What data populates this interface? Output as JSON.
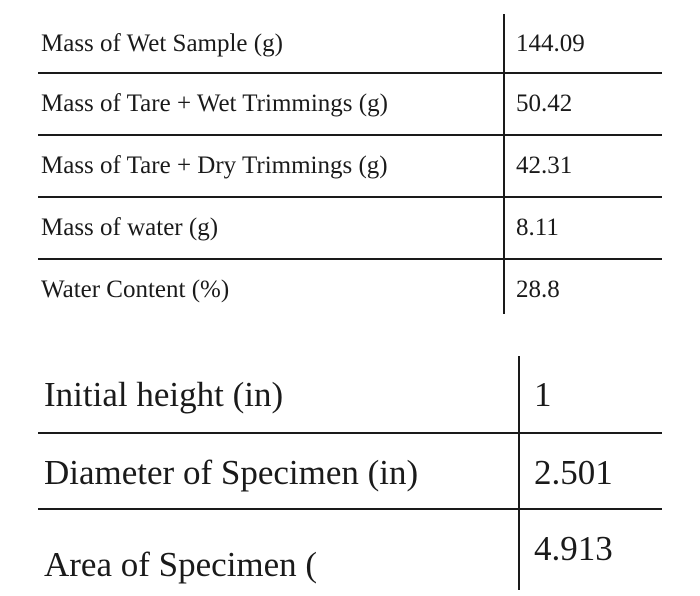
{
  "moisture_table": {
    "rows": [
      {
        "label": "Mass of Wet Sample (g)",
        "value": "144.09"
      },
      {
        "label": "Mass of Tare + Wet Trimmings (g)",
        "value": "50.42"
      },
      {
        "label": "Mass of Tare + Dry Trimmings (g)",
        "value": "42.31"
      },
      {
        "label": "Mass of water (g)",
        "value": "8.11"
      },
      {
        "label": "Water Content (%)",
        "value": "28.8"
      }
    ]
  },
  "specimen_table": {
    "rows": [
      {
        "label": "Initial height (in)",
        "value": "1"
      },
      {
        "label": "Diameter of Specimen (in)",
        "value": "2.501"
      },
      {
        "label": "Area of Specimen (",
        "value": "4.913"
      }
    ]
  }
}
